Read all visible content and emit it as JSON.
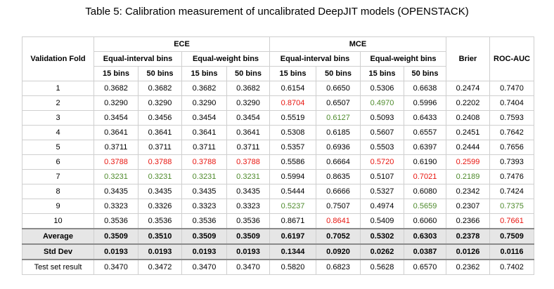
{
  "caption": "Table 5: Calibration measurement of uncalibrated DeepJIT models (OPENSTACK)",
  "headers": {
    "fold": "Validation Fold",
    "ece": "ECE",
    "mce": "MCE",
    "equal_interval": "Equal-interval bins",
    "equal_weight": "Equal-weight bins",
    "bins15": "15 bins",
    "bins50": "50 bins",
    "brier": "Brier",
    "roc": "ROC-AUC"
  },
  "rows": [
    {
      "label": "1",
      "vals": [
        "0.3682",
        "0.3682",
        "0.3682",
        "0.3682",
        "0.6154",
        "0.6650",
        "0.5306",
        "0.6638",
        "0.2474",
        "0.7470"
      ],
      "hl": [
        "",
        "",
        "",
        "",
        "",
        "",
        "",
        "",
        "",
        ""
      ]
    },
    {
      "label": "2",
      "vals": [
        "0.3290",
        "0.3290",
        "0.3290",
        "0.3290",
        "0.8704",
        "0.6507",
        "0.4970",
        "0.5996",
        "0.2202",
        "0.7404"
      ],
      "hl": [
        "",
        "",
        "",
        "",
        "red",
        "",
        "green",
        "",
        "",
        ""
      ]
    },
    {
      "label": "3",
      "vals": [
        "0.3454",
        "0.3456",
        "0.3454",
        "0.3454",
        "0.5519",
        "0.6127",
        "0.5093",
        "0.6433",
        "0.2408",
        "0.7593"
      ],
      "hl": [
        "",
        "",
        "",
        "",
        "",
        "green",
        "",
        "",
        "",
        ""
      ]
    },
    {
      "label": "4",
      "vals": [
        "0.3641",
        "0.3641",
        "0.3641",
        "0.3641",
        "0.5308",
        "0.6185",
        "0.5607",
        "0.6557",
        "0.2451",
        "0.7642"
      ],
      "hl": [
        "",
        "",
        "",
        "",
        "",
        "",
        "",
        "",
        "",
        ""
      ]
    },
    {
      "label": "5",
      "vals": [
        "0.3711",
        "0.3711",
        "0.3711",
        "0.3711",
        "0.5357",
        "0.6936",
        "0.5503",
        "0.6397",
        "0.2444",
        "0.7656"
      ],
      "hl": [
        "",
        "",
        "",
        "",
        "",
        "",
        "",
        "",
        "",
        ""
      ]
    },
    {
      "label": "6",
      "vals": [
        "0.3788",
        "0.3788",
        "0.3788",
        "0.3788",
        "0.5586",
        "0.6664",
        "0.5720",
        "0.6190",
        "0.2599",
        "0.7393"
      ],
      "hl": [
        "red",
        "red",
        "red",
        "red",
        "",
        "",
        "red",
        "",
        "red",
        ""
      ]
    },
    {
      "label": "7",
      "vals": [
        "0.3231",
        "0.3231",
        "0.3231",
        "0.3231",
        "0.5994",
        "0.8635",
        "0.5107",
        "0.7021",
        "0.2189",
        "0.7476"
      ],
      "hl": [
        "green",
        "green",
        "green",
        "green",
        "",
        "",
        "",
        "red",
        "green",
        ""
      ]
    },
    {
      "label": "8",
      "vals": [
        "0.3435",
        "0.3435",
        "0.3435",
        "0.3435",
        "0.5444",
        "0.6666",
        "0.5327",
        "0.6080",
        "0.2342",
        "0.7424"
      ],
      "hl": [
        "",
        "",
        "",
        "",
        "",
        "",
        "",
        "",
        "",
        ""
      ]
    },
    {
      "label": "9",
      "vals": [
        "0.3323",
        "0.3326",
        "0.3323",
        "0.3323",
        "0.5237",
        "0.7507",
        "0.4974",
        "0.5659",
        "0.2307",
        "0.7375"
      ],
      "hl": [
        "",
        "",
        "",
        "",
        "green",
        "",
        "",
        "green",
        "",
        "green"
      ]
    },
    {
      "label": "10",
      "vals": [
        "0.3536",
        "0.3536",
        "0.3536",
        "0.3536",
        "0.8671",
        "0.8641",
        "0.5409",
        "0.6060",
        "0.2366",
        "0.7661"
      ],
      "hl": [
        "",
        "",
        "",
        "",
        "",
        "red",
        "",
        "",
        "",
        "red"
      ]
    }
  ],
  "summary": [
    {
      "label": "Average",
      "vals": [
        "0.3509",
        "0.3510",
        "0.3509",
        "0.3509",
        "0.6197",
        "0.7052",
        "0.5302",
        "0.6303",
        "0.2378",
        "0.7509"
      ]
    },
    {
      "label": "Std Dev",
      "vals": [
        "0.0193",
        "0.0193",
        "0.0193",
        "0.0193",
        "0.1344",
        "0.0920",
        "0.0262",
        "0.0387",
        "0.0126",
        "0.0116"
      ]
    }
  ],
  "test": {
    "label": "Test set result",
    "vals": [
      "0.3470",
      "0.3472",
      "0.3470",
      "0.3470",
      "0.5820",
      "0.6823",
      "0.5628",
      "0.6570",
      "0.2362",
      "0.7402"
    ]
  },
  "colors": {
    "highlight_red": "#e8150f",
    "highlight_green": "#4e8a2c",
    "summary_bg": "#e6e6e6"
  }
}
